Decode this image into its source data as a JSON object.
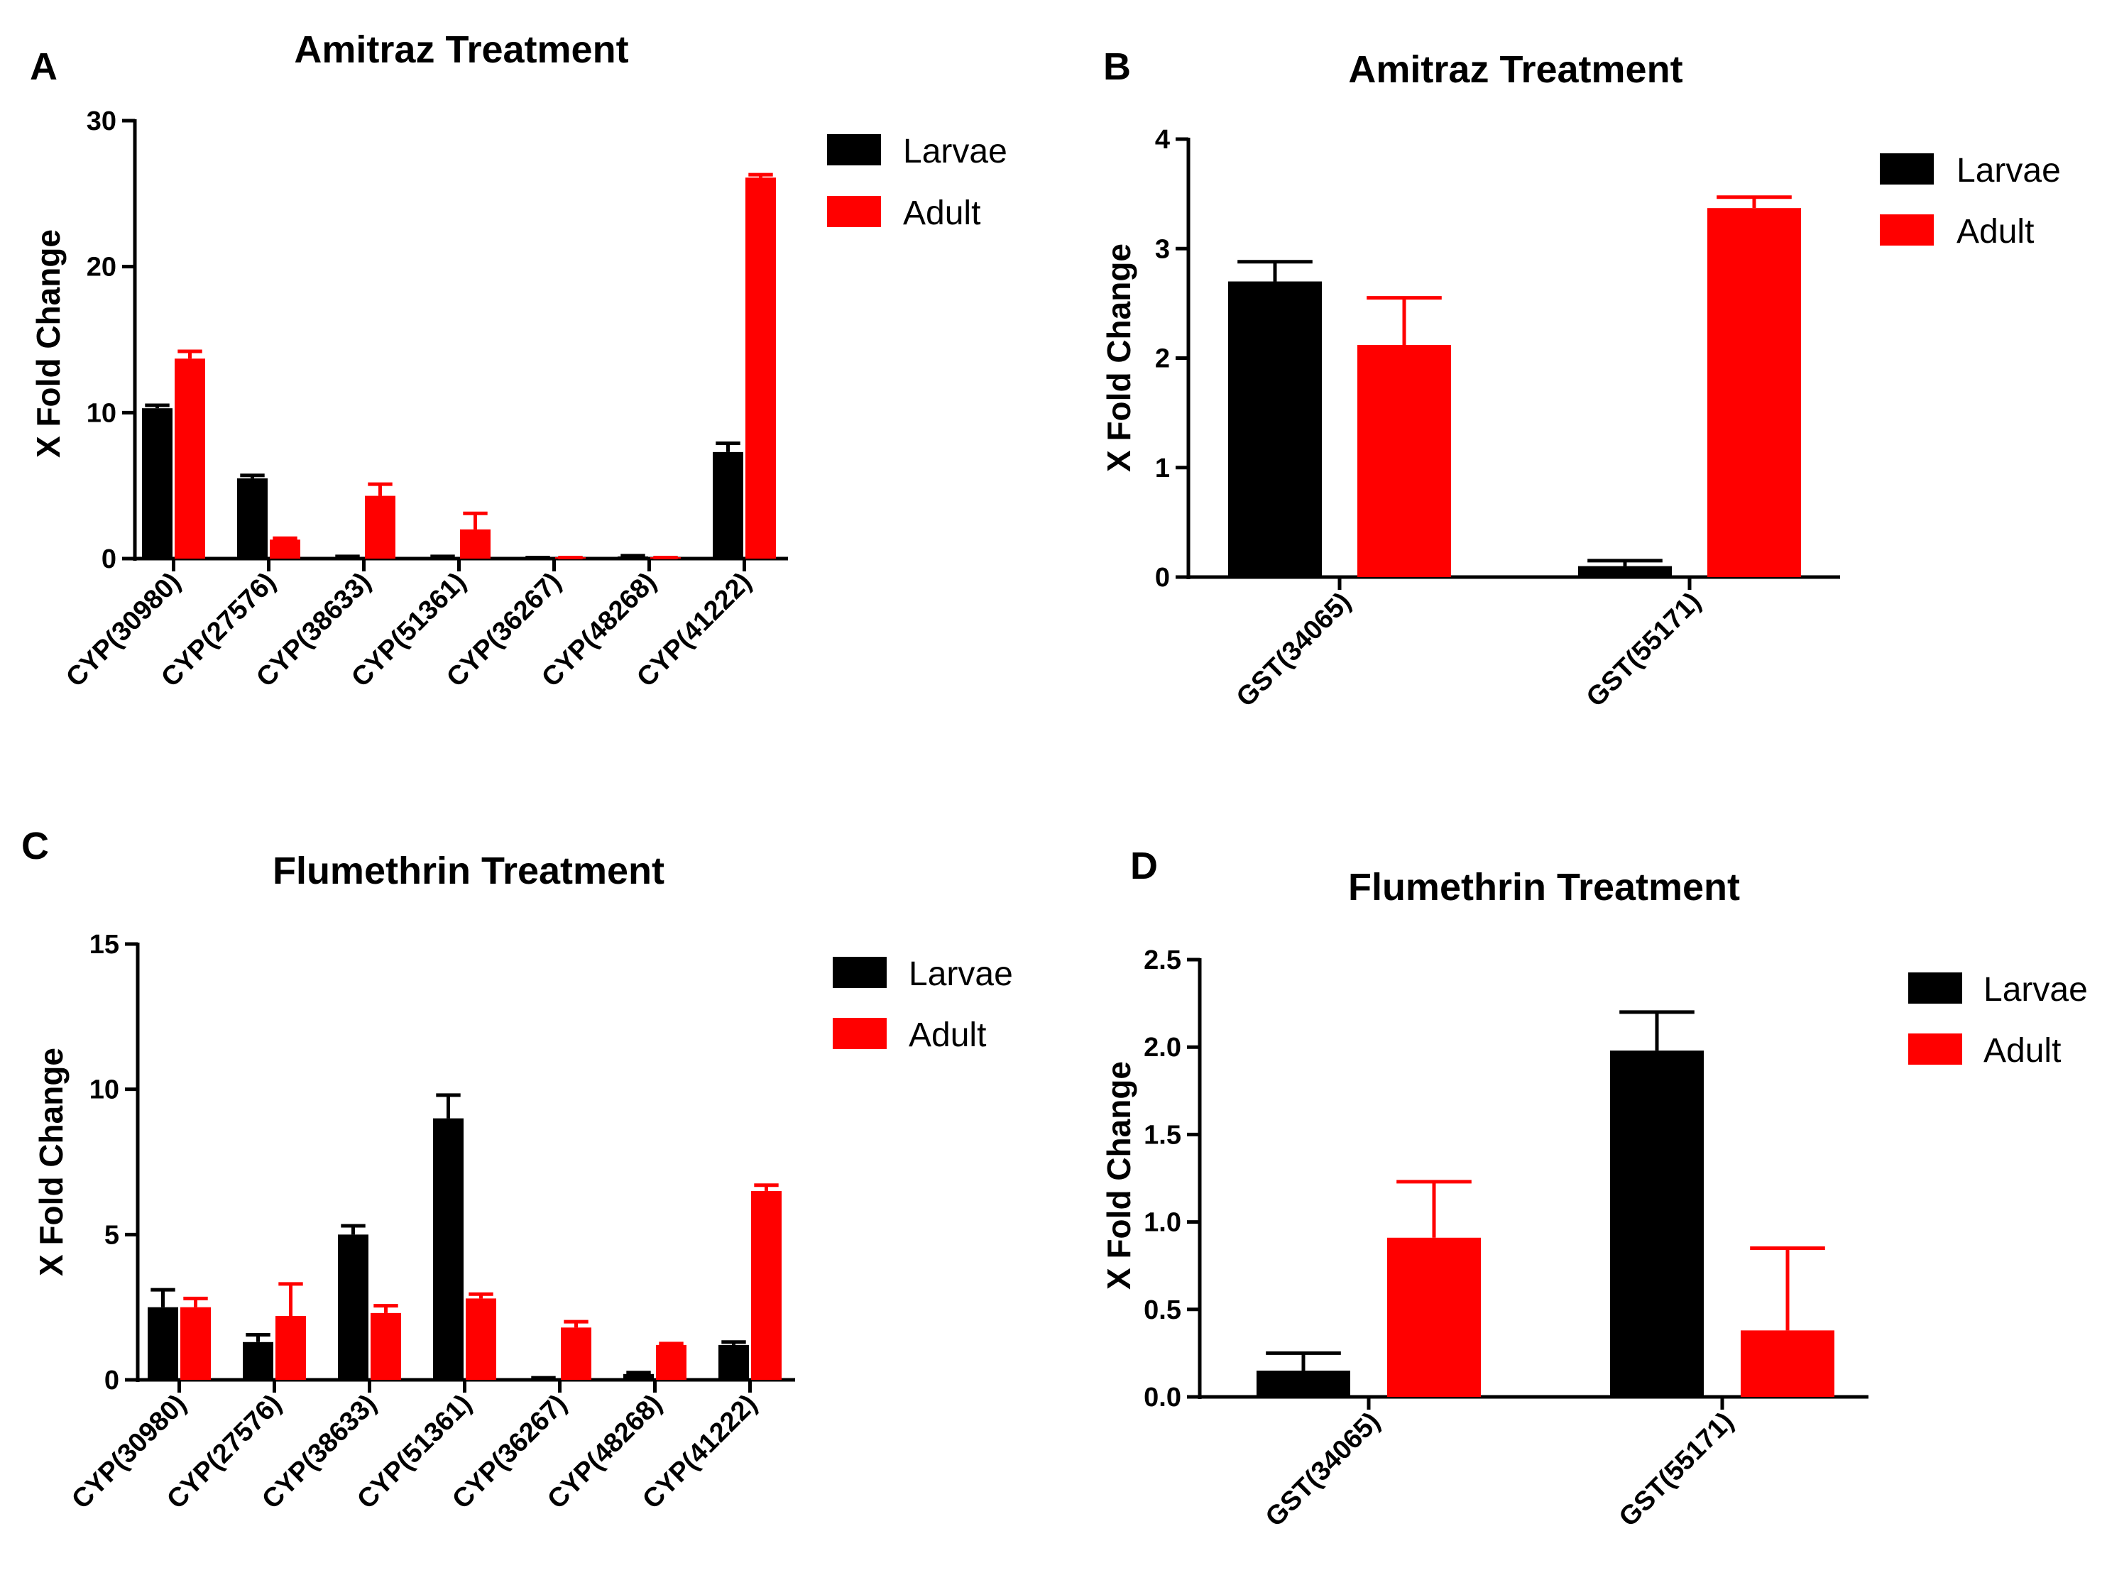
{
  "figure": {
    "colors": {
      "larvae": "#000000",
      "adult": "#ff0000"
    }
  },
  "chart_data": [
    {
      "panel": "A",
      "type": "bar",
      "title": "Amitraz Treatment",
      "xlabel": "",
      "ylabel": "X Fold Change",
      "ylim": [
        0,
        30
      ],
      "yticks": [
        {
          "value": 0,
          "label": "0"
        },
        {
          "value": 10,
          "label": "10"
        },
        {
          "value": 20,
          "label": "20"
        },
        {
          "value": 30,
          "label": "30"
        }
      ],
      "categories": [
        "CYP(30980)",
        "CYP(27576)",
        "CYP(38633)",
        "CYP(51361)",
        "CYP(36267)",
        "CYP(48268)",
        "CYP(41222)"
      ],
      "series": [
        {
          "name": "Larvae",
          "values": [
            10.3,
            5.5,
            0.1,
            0.1,
            0.05,
            0.15,
            7.3
          ],
          "errors": [
            0.2,
            0.2,
            0.05,
            0.05,
            0.02,
            0.05,
            0.6
          ]
        },
        {
          "name": "Adult",
          "values": [
            13.7,
            1.3,
            4.3,
            2.0,
            0.05,
            0.05,
            26.1
          ],
          "errors": [
            0.5,
            0.1,
            0.8,
            1.1,
            0.02,
            0.02,
            0.2
          ]
        }
      ],
      "legend": [
        "Larvae",
        "Adult"
      ],
      "legend_position": "top-right"
    },
    {
      "panel": "B",
      "type": "bar",
      "title": "Amitraz Treatment",
      "xlabel": "",
      "ylabel": "X Fold Change",
      "ylim": [
        0,
        4
      ],
      "yticks": [
        {
          "value": 0,
          "label": "0"
        },
        {
          "value": 1,
          "label": "1"
        },
        {
          "value": 2,
          "label": "2"
        },
        {
          "value": 3,
          "label": "3"
        },
        {
          "value": 4,
          "label": "4"
        }
      ],
      "categories": [
        "GST(34065)",
        "GST(55171)"
      ],
      "series": [
        {
          "name": "Larvae",
          "values": [
            2.7,
            0.1
          ],
          "errors": [
            0.18,
            0.05
          ]
        },
        {
          "name": "Adult",
          "values": [
            2.12,
            3.37
          ],
          "errors": [
            0.43,
            0.1
          ]
        }
      ],
      "legend": [
        "Larvae",
        "Adult"
      ],
      "legend_position": "top-right"
    },
    {
      "panel": "C",
      "type": "bar",
      "title": "Flumethrin Treatment",
      "xlabel": "",
      "ylabel": "X Fold Change",
      "ylim": [
        0,
        15
      ],
      "yticks": [
        {
          "value": 0,
          "label": "0"
        },
        {
          "value": 5,
          "label": "5"
        },
        {
          "value": 10,
          "label": "10"
        },
        {
          "value": 15,
          "label": "15"
        }
      ],
      "categories": [
        "CYP(30980)",
        "CYP(27576)",
        "CYP(38633)",
        "CYP(51361)",
        "CYP(36267)",
        "CYP(48268)",
        "CYP(41222)"
      ],
      "series": [
        {
          "name": "Larvae",
          "values": [
            2.5,
            1.3,
            5.0,
            9.0,
            0.05,
            0.2,
            1.2
          ],
          "errors": [
            0.6,
            0.25,
            0.3,
            0.8,
            0.02,
            0.05,
            0.1
          ]
        },
        {
          "name": "Adult",
          "values": [
            2.5,
            2.2,
            2.3,
            2.8,
            1.8,
            1.2,
            6.5
          ],
          "errors": [
            0.3,
            1.1,
            0.25,
            0.15,
            0.2,
            0.05,
            0.2
          ]
        }
      ],
      "legend": [
        "Larvae",
        "Adult"
      ],
      "legend_position": "top-right"
    },
    {
      "panel": "D",
      "type": "bar",
      "title": "Flumethrin Treatment",
      "xlabel": "",
      "ylabel": "X Fold Change",
      "ylim": [
        0,
        2.5
      ],
      "yticks": [
        {
          "value": 0,
          "label": "0.0"
        },
        {
          "value": 0.5,
          "label": "0.5"
        },
        {
          "value": 1.0,
          "label": "1.0"
        },
        {
          "value": 1.5,
          "label": "1.5"
        },
        {
          "value": 2.0,
          "label": "2.0"
        },
        {
          "value": 2.5,
          "label": "2.5"
        }
      ],
      "categories": [
        "GST(34065)",
        "GST(55171)"
      ],
      "series": [
        {
          "name": "Larvae",
          "values": [
            0.15,
            1.98
          ],
          "errors": [
            0.1,
            0.22
          ]
        },
        {
          "name": "Adult",
          "values": [
            0.91,
            0.38
          ],
          "errors": [
            0.32,
            0.47
          ]
        }
      ],
      "legend": [
        "Larvae",
        "Adult"
      ],
      "legend_position": "top-right"
    }
  ]
}
